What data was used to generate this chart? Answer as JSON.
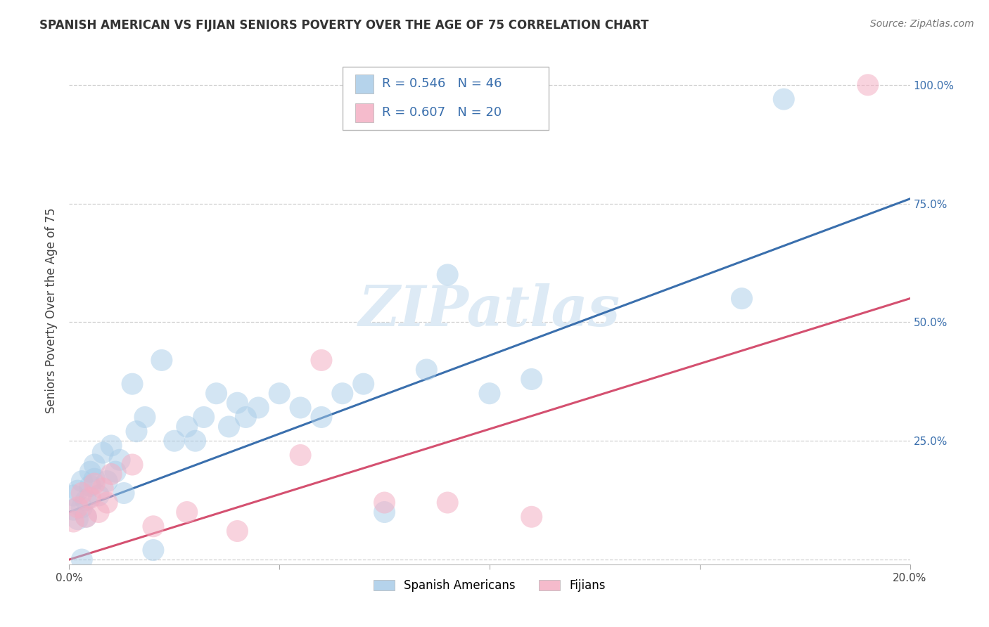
{
  "title": "SPANISH AMERICAN VS FIJIAN SENIORS POVERTY OVER THE AGE OF 75 CORRELATION CHART",
  "source": "Source: ZipAtlas.com",
  "ylabel": "Seniors Poverty Over the Age of 75",
  "background_color": "#ffffff",
  "grid_color": "#cccccc",
  "r_spanish": 0.546,
  "n_spanish": 46,
  "r_fijian": 0.607,
  "n_fijian": 20,
  "blue_color": "#a8cce8",
  "blue_line_color": "#3a6fad",
  "pink_color": "#f4afc4",
  "pink_line_color": "#d45070",
  "watermark": "ZIPatlas",
  "watermark_color": "#ddeaf5",
  "xlim": [
    0.0,
    0.2
  ],
  "ylim": [
    -0.01,
    1.06
  ],
  "blue_line_y0": 0.1,
  "blue_line_y1": 0.76,
  "pink_line_y0": 0.0,
  "pink_line_y1": 0.55,
  "spanish_x": [
    0.001,
    0.001,
    0.002,
    0.002,
    0.003,
    0.003,
    0.004,
    0.004,
    0.005,
    0.005,
    0.006,
    0.006,
    0.007,
    0.008,
    0.009,
    0.01,
    0.011,
    0.012,
    0.013,
    0.015,
    0.016,
    0.018,
    0.022,
    0.025,
    0.028,
    0.03,
    0.032,
    0.035,
    0.038,
    0.04,
    0.042,
    0.045,
    0.05,
    0.055,
    0.06,
    0.065,
    0.07,
    0.075,
    0.085,
    0.09,
    0.1,
    0.11,
    0.16,
    0.17,
    0.02,
    0.003
  ],
  "spanish_y": [
    0.105,
    0.135,
    0.085,
    0.145,
    0.11,
    0.165,
    0.125,
    0.09,
    0.155,
    0.185,
    0.17,
    0.2,
    0.135,
    0.225,
    0.165,
    0.24,
    0.185,
    0.21,
    0.14,
    0.37,
    0.27,
    0.3,
    0.42,
    0.25,
    0.28,
    0.25,
    0.3,
    0.35,
    0.28,
    0.33,
    0.3,
    0.32,
    0.35,
    0.32,
    0.3,
    0.35,
    0.37,
    0.1,
    0.4,
    0.6,
    0.35,
    0.38,
    0.55,
    0.97,
    0.02,
    0.0
  ],
  "fijian_x": [
    0.001,
    0.002,
    0.003,
    0.004,
    0.005,
    0.006,
    0.007,
    0.008,
    0.009,
    0.01,
    0.015,
    0.02,
    0.028,
    0.04,
    0.055,
    0.06,
    0.075,
    0.09,
    0.11,
    0.19
  ],
  "fijian_y": [
    0.08,
    0.11,
    0.14,
    0.09,
    0.13,
    0.16,
    0.1,
    0.15,
    0.12,
    0.18,
    0.2,
    0.07,
    0.1,
    0.06,
    0.22,
    0.42,
    0.12,
    0.12,
    0.09,
    1.0
  ]
}
